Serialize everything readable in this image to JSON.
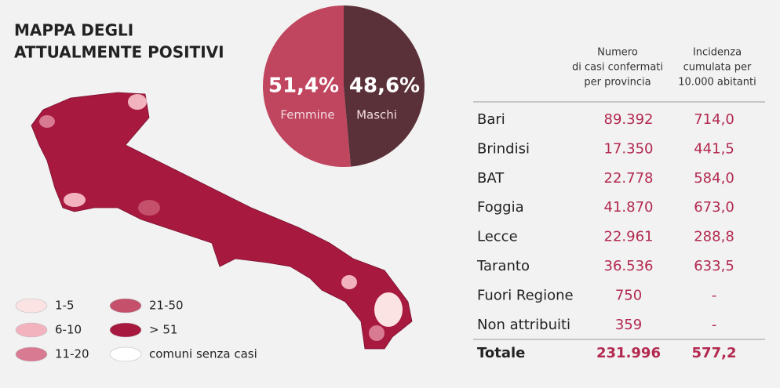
{
  "title": [
    "MAPPA DEGLI",
    "ATTUALMENTE POSITIVI"
  ],
  "chart_data": {
    "type": "pie",
    "categories": [
      "Femmine",
      "Maschi"
    ],
    "values": [
      51.4,
      48.6
    ],
    "value_labels": [
      "51,4%",
      "48,6%"
    ],
    "colors": [
      "#c0455e",
      "#5a3138"
    ]
  },
  "legend": [
    {
      "label": "1-5",
      "color": "#fbe3e3"
    },
    {
      "label": "6-10",
      "color": "#f2b3bf"
    },
    {
      "label": "11-20",
      "color": "#d97a93"
    },
    {
      "label": "21-50",
      "color": "#c4506c"
    },
    {
      "label": "> 51",
      "color": "#a8193f"
    },
    {
      "label": "comuni senza casi",
      "color": "#ffffff"
    }
  ],
  "table": {
    "headers": [
      [
        "Numero",
        "di casi confermati",
        "per provincia"
      ],
      [
        "Incidenza",
        "cumulata per",
        "10.000 abitanti"
      ]
    ],
    "rows": [
      [
        "Bari",
        "89.392",
        "714,0"
      ],
      [
        "Brindisi",
        "17.350",
        "441,5"
      ],
      [
        "BAT",
        "22.778",
        "584,0"
      ],
      [
        "Foggia",
        "41.870",
        "673,0"
      ],
      [
        "Lecce",
        "22.961",
        "288,8"
      ],
      [
        "Taranto",
        "36.536",
        "633,5"
      ],
      [
        "Fuori Regione",
        "750",
        "-"
      ],
      [
        "Non attribuiti",
        "359",
        "-"
      ]
    ],
    "total": [
      "Totale",
      "231.996",
      "577,2"
    ]
  }
}
